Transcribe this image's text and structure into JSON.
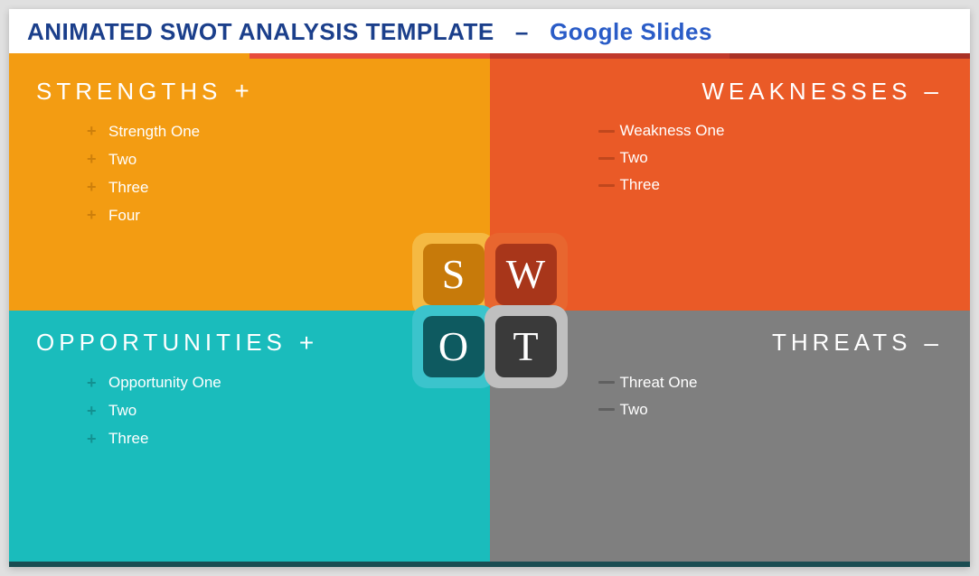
{
  "title": {
    "main": "ANIMATED SWOT ANALYSIS TEMPLATE",
    "separator": "–",
    "sub": "Google Slides",
    "main_color": "#1b3f8b",
    "sub_color": "#2a5cc7"
  },
  "divider": {
    "segments": [
      "#f39c12",
      "#e74c3c",
      "#c0392b",
      "#a93226"
    ]
  },
  "bottom_strip_color": "#1a4d52",
  "quadrants": {
    "strengths": {
      "label": "STRENGTHS",
      "sign": "+",
      "bg": "#f39c12",
      "bullet_color": "#c77a0a",
      "bullet_type": "plus",
      "align": "left",
      "items": [
        "Strength One",
        "Two",
        "Three",
        "Four"
      ]
    },
    "weaknesses": {
      "label": "WEAKNESSES",
      "sign": "–",
      "bg": "#ea5a27",
      "bullet_color": "#b8441c",
      "bullet_type": "minus",
      "align": "right",
      "items": [
        "Weakness One",
        "Two",
        "Three"
      ]
    },
    "opportunities": {
      "label": "OPPORTUNITIES",
      "sign": "+",
      "bg": "#1abcbc",
      "bullet_color": "#118a8a",
      "bullet_type": "plus",
      "align": "left",
      "items": [
        "Opportunity One",
        "Two",
        "Three"
      ]
    },
    "threats": {
      "label": "THREATS",
      "sign": "–",
      "bg": "#7f7f7f",
      "bullet_color": "#5a5a5a",
      "bullet_type": "minus",
      "align": "right",
      "items": [
        "Threat One",
        "Two"
      ]
    }
  },
  "center_badge": {
    "s": {
      "letter": "S",
      "outer_bg": "#f5b942",
      "inner_bg": "#c77a0a"
    },
    "w": {
      "letter": "W",
      "outer_bg": "#e8662f",
      "inner_bg": "#a8361a"
    },
    "o": {
      "letter": "O",
      "outer_bg": "#3bc4cc",
      "inner_bg": "#0e5a60"
    },
    "t": {
      "letter": "T",
      "outer_bg": "#bfbfbf",
      "inner_bg": "#3a3a3a"
    }
  }
}
